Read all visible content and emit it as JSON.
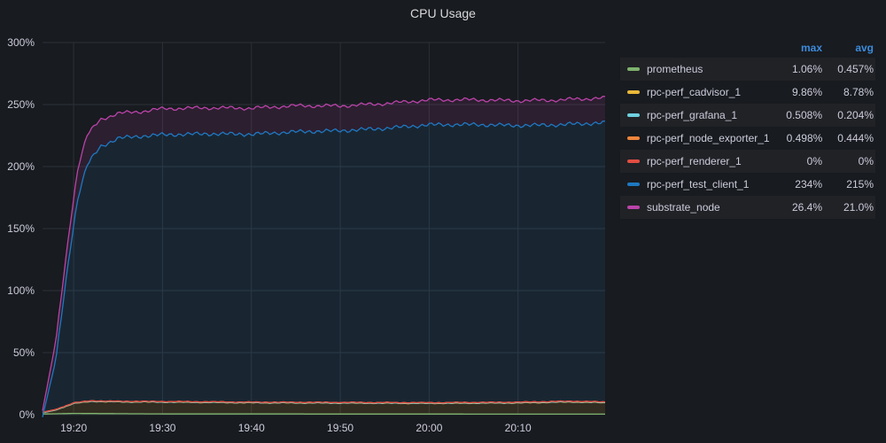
{
  "panel": {
    "title": "CPU Usage"
  },
  "legend": {
    "header": {
      "max": "max",
      "avg": "avg"
    },
    "rows": [
      {
        "name": "prometheus",
        "color": "#7eb26d",
        "max": "1.06%",
        "avg": "0.457%"
      },
      {
        "name": "rpc-perf_cadvisor_1",
        "color": "#eab839",
        "max": "9.86%",
        "avg": "8.78%"
      },
      {
        "name": "rpc-perf_grafana_1",
        "color": "#6ed0e0",
        "max": "0.508%",
        "avg": "0.204%"
      },
      {
        "name": "rpc-perf_node_exporter_1",
        "color": "#ef843c",
        "max": "0.498%",
        "avg": "0.444%"
      },
      {
        "name": "rpc-perf_renderer_1",
        "color": "#e24d42",
        "max": "0%",
        "avg": "0%"
      },
      {
        "name": "rpc-perf_test_client_1",
        "color": "#1f78c1",
        "max": "234%",
        "avg": "215%"
      },
      {
        "name": "substrate_node",
        "color": "#ba43a9",
        "max": "26.4%",
        "avg": "21.0%"
      }
    ]
  },
  "chart_data": {
    "type": "area",
    "stacked": true,
    "title": "CPU Usage",
    "x_unit": "minutes",
    "xlim": [
      "19:16.5",
      "20:19.8"
    ],
    "ylim": [
      0,
      300
    ],
    "y_ticks": [
      "0%",
      "50%",
      "100%",
      "150%",
      "200%",
      "250%",
      "300%"
    ],
    "x_ticks": [
      "19:20",
      "19:30",
      "19:40",
      "19:50",
      "20:00",
      "20:10"
    ],
    "grid": true,
    "legend_position": "right",
    "series": [
      {
        "name": "prometheus",
        "color": "#7eb26d",
        "points": [
          [
            "19:16.5",
            0.5
          ],
          [
            "19:20",
            1
          ],
          [
            "19:30",
            0.6
          ],
          [
            "20:19.8",
            0.4
          ]
        ]
      },
      {
        "name": "rpc-perf_cadvisor_1",
        "color": "#eab839",
        "points": [
          [
            "19:16.5",
            1
          ],
          [
            "19:18",
            3
          ],
          [
            "19:20",
            8
          ],
          [
            "19:22",
            9.8
          ],
          [
            "19:24",
            9.5
          ],
          [
            "19:30",
            9.5
          ],
          [
            "19:40",
            9
          ],
          [
            "19:50",
            8.8
          ],
          [
            "20:00",
            8.6
          ],
          [
            "20:10",
            9
          ],
          [
            "20:16",
            9.8
          ],
          [
            "20:19.8",
            9.2
          ]
        ]
      },
      {
        "name": "rpc-perf_grafana_1",
        "color": "#6ed0e0",
        "points": [
          [
            "19:16.5",
            0.1
          ],
          [
            "20:19.8",
            0.2
          ]
        ]
      },
      {
        "name": "rpc-perf_node_exporter_1",
        "color": "#ef843c",
        "points": [
          [
            "19:16.5",
            0.4
          ],
          [
            "20:19.8",
            0.45
          ]
        ]
      },
      {
        "name": "rpc-perf_renderer_1",
        "color": "#e24d42",
        "points": [
          [
            "19:16.5",
            0
          ],
          [
            "20:19.8",
            0
          ]
        ]
      },
      {
        "name": "rpc-perf_test_client_1",
        "color": "#1f78c1",
        "points": [
          [
            "19:16.5",
            -4
          ],
          [
            "19:18",
            40
          ],
          [
            "19:19.5",
            120
          ],
          [
            "19:20.5",
            166
          ],
          [
            "19:21.5",
            190
          ],
          [
            "19:23",
            205
          ],
          [
            "19:25",
            212
          ],
          [
            "19:28",
            214
          ],
          [
            "19:30",
            215
          ],
          [
            "19:35",
            216
          ],
          [
            "19:40",
            216
          ],
          [
            "19:45",
            218
          ],
          [
            "19:50",
            219
          ],
          [
            "19:55",
            221
          ],
          [
            "20:00",
            224
          ],
          [
            "20:05",
            224
          ],
          [
            "20:10",
            223
          ],
          [
            "20:15",
            223
          ],
          [
            "20:19.8",
            225
          ]
        ]
      },
      {
        "name": "substrate_node",
        "color": "#ba43a9",
        "points": [
          [
            "19:16.5",
            5
          ],
          [
            "19:18",
            15
          ],
          [
            "19:19.5",
            20
          ],
          [
            "19:20.5",
            24
          ],
          [
            "19:21.5",
            24
          ],
          [
            "19:23",
            22
          ],
          [
            "19:25",
            20
          ],
          [
            "19:28",
            20
          ],
          [
            "19:30",
            21
          ],
          [
            "19:35",
            21
          ],
          [
            "19:40",
            21
          ],
          [
            "19:45",
            21
          ],
          [
            "19:50",
            20
          ],
          [
            "19:55",
            20
          ],
          [
            "20:00",
            20
          ],
          [
            "20:05",
            20
          ],
          [
            "20:10",
            20
          ],
          [
            "20:15",
            20
          ],
          [
            "20:19.8",
            20
          ]
        ]
      }
    ]
  }
}
